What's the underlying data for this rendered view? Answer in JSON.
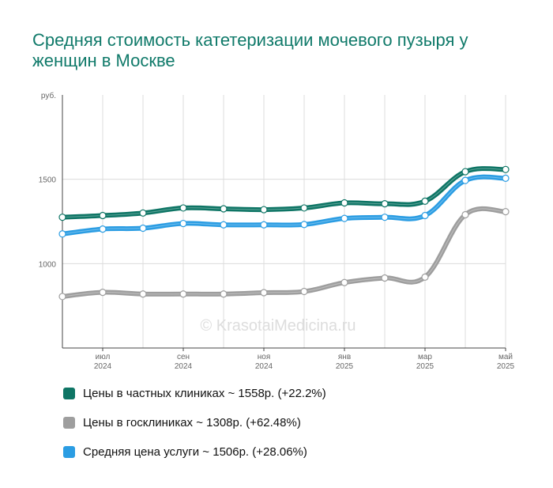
{
  "title": "Средняя стоимость катетеризации мочевого пузыря у женщин в Москве",
  "watermark": "© KrasotaiMedicina.ru",
  "chart_data": {
    "type": "line",
    "title": "Средняя стоимость катетеризации мочевого пузыря у женщин в Москве",
    "ylabel": "руб.",
    "ylim": [
      500,
      2000
    ],
    "y_ticks": [
      1000,
      1500
    ],
    "x_ticks": [
      {
        "month": "июл",
        "year": "2024"
      },
      {
        "month": "сен",
        "year": "2024"
      },
      {
        "month": "ноя",
        "year": "2024"
      },
      {
        "month": "янв",
        "year": "2025"
      },
      {
        "month": "мар",
        "year": "2025"
      },
      {
        "month": "май",
        "year": "2025"
      }
    ],
    "x": [
      "2024-06",
      "2024-07",
      "2024-08",
      "2024-09",
      "2024-10",
      "2024-11",
      "2024-12",
      "2025-01",
      "2025-02",
      "2025-03",
      "2025-04",
      "2025-05"
    ],
    "grid": true,
    "legend_position": "bottom",
    "series": [
      {
        "name": "Цены в частных клиниках ~ 1558р. (+22.2%)",
        "color": "#0e7565",
        "values": [
          1275,
          1285,
          1300,
          1330,
          1325,
          1320,
          1330,
          1360,
          1355,
          1370,
          1545,
          1558
        ]
      },
      {
        "name": "Цены в госклиниках ~ 1308р. (+62.48%)",
        "color": "#9e9e9e",
        "values": [
          805,
          830,
          820,
          820,
          820,
          828,
          835,
          888,
          915,
          920,
          1290,
          1308
        ]
      },
      {
        "name": "Средняя цена услуги ~ 1506р. (+28.06%)",
        "color": "#2b9de3",
        "values": [
          1176,
          1205,
          1210,
          1238,
          1230,
          1230,
          1232,
          1268,
          1275,
          1285,
          1493,
          1506
        ]
      }
    ]
  }
}
